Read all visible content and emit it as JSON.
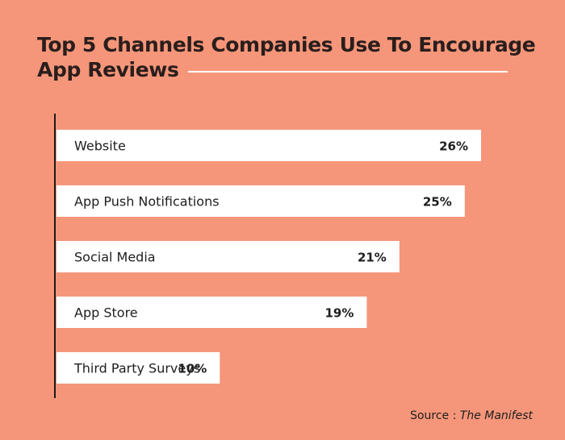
{
  "title_line1": "Top 5 Channels Companies Use To Encourage",
  "title_line2": "App Reviews",
  "source_prefix": "Source : ",
  "source_name": "The Manifest",
  "colors": {
    "background": "#F5967A",
    "bar": "#FFFFFF",
    "text": "#1E1E1E",
    "axis": "#1A1A1A"
  },
  "chart_data": {
    "type": "bar",
    "orientation": "horizontal",
    "categories": [
      "Website",
      "App Push Notifications",
      "Social Media",
      "App Store",
      "Third Party Surveys"
    ],
    "values": [
      26,
      25,
      21,
      19,
      10
    ],
    "value_labels": [
      "26%",
      "25%",
      "21%",
      "19%",
      "10%"
    ],
    "xlim": [
      0,
      26
    ],
    "grid": false,
    "legend": "none"
  }
}
